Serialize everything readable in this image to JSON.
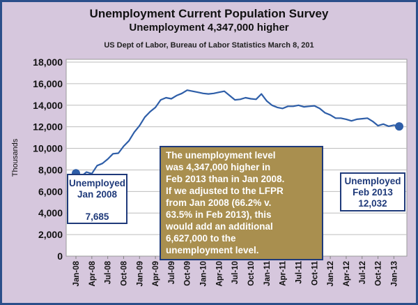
{
  "chart_data": {
    "type": "line",
    "title": "Unemployment Current Population Survey",
    "subtitle": "Unemployment 4,347,000 higher",
    "source_note": "US Dept of Labor, Bureau of Labor Statistics March 8, 201",
    "ylabel": "Thousands",
    "xlabel": "",
    "ylim": [
      0,
      18000
    ],
    "y_ticks": [
      "0",
      "2,000",
      "4,000",
      "6,000",
      "8,000",
      "10,000",
      "12,000",
      "14,000",
      "16,000",
      "18,000"
    ],
    "x_tick_labels": [
      "Jan-08",
      "Apr-08",
      "Jul-08",
      "Oct-08",
      "Jan-09",
      "Apr-09",
      "Jul-09",
      "Oct-09",
      "Jan-10",
      "Apr-10",
      "Jul-10",
      "Oct-10",
      "Jan-11",
      "Apr-11",
      "Jul-11",
      "Oct-11",
      "Jan-12",
      "Apr-12",
      "Jul-12",
      "Oct-12",
      "Jan-13"
    ],
    "grid": "horizontal",
    "line_color": "#2e5ea8",
    "x": [
      "Jan-08",
      "Feb-08",
      "Mar-08",
      "Apr-08",
      "May-08",
      "Jun-08",
      "Jul-08",
      "Aug-08",
      "Sep-08",
      "Oct-08",
      "Nov-08",
      "Dec-08",
      "Jan-09",
      "Feb-09",
      "Mar-09",
      "Apr-09",
      "May-09",
      "Jun-09",
      "Jul-09",
      "Aug-09",
      "Sep-09",
      "Oct-09",
      "Nov-09",
      "Dec-09",
      "Jan-10",
      "Feb-10",
      "Mar-10",
      "Apr-10",
      "May-10",
      "Jun-10",
      "Jul-10",
      "Aug-10",
      "Sep-10",
      "Oct-10",
      "Nov-10",
      "Dec-10",
      "Jan-11",
      "Feb-11",
      "Mar-11",
      "Apr-11",
      "May-11",
      "Jun-11",
      "Jul-11",
      "Aug-11",
      "Sep-11",
      "Oct-11",
      "Nov-11",
      "Dec-11",
      "Jan-12",
      "Feb-12",
      "Mar-12",
      "Apr-12",
      "May-12",
      "Jun-12",
      "Jul-12",
      "Aug-12",
      "Sep-12",
      "Oct-12",
      "Nov-12",
      "Dec-12",
      "Jan-13",
      "Feb-13"
    ],
    "values": [
      7685,
      7400,
      7800,
      7650,
      8400,
      8600,
      9000,
      9500,
      9550,
      10200,
      10700,
      11500,
      12100,
      12900,
      13400,
      13800,
      14500,
      14700,
      14600,
      14900,
      15100,
      15400,
      15300,
      15200,
      15100,
      15050,
      15100,
      15200,
      15300,
      14900,
      14500,
      14550,
      14700,
      14600,
      14550,
      15050,
      14400,
      14000,
      13800,
      13700,
      13900,
      13900,
      14000,
      13850,
      13900,
      13950,
      13700,
      13300,
      13100,
      12800,
      12800,
      12700,
      12550,
      12700,
      12750,
      12800,
      12500,
      12100,
      12250,
      12050,
      12150,
      12032
    ],
    "markers": [
      {
        "x": "Jan-08",
        "value": 7685
      },
      {
        "x": "Feb-13",
        "value": 12032
      }
    ],
    "annotations": {
      "left": {
        "lines": [
          "Unemployed",
          "Jan 2008",
          "",
          "7,685"
        ]
      },
      "right": {
        "lines": [
          "Unemployed",
          "Feb 2013",
          "12,032"
        ]
      },
      "center": {
        "lines": [
          "The unemployment level",
          "was 4,347,000 higher in",
          "Feb 2013 than in Jan 2008.",
          "If we adjusted to the LFPR",
          "from Jan 2008 (66.2% v.",
          "63.5% in Feb 2013), this",
          "would add an additional",
          "6,627,000 to the",
          "unemployment  level."
        ]
      }
    }
  }
}
